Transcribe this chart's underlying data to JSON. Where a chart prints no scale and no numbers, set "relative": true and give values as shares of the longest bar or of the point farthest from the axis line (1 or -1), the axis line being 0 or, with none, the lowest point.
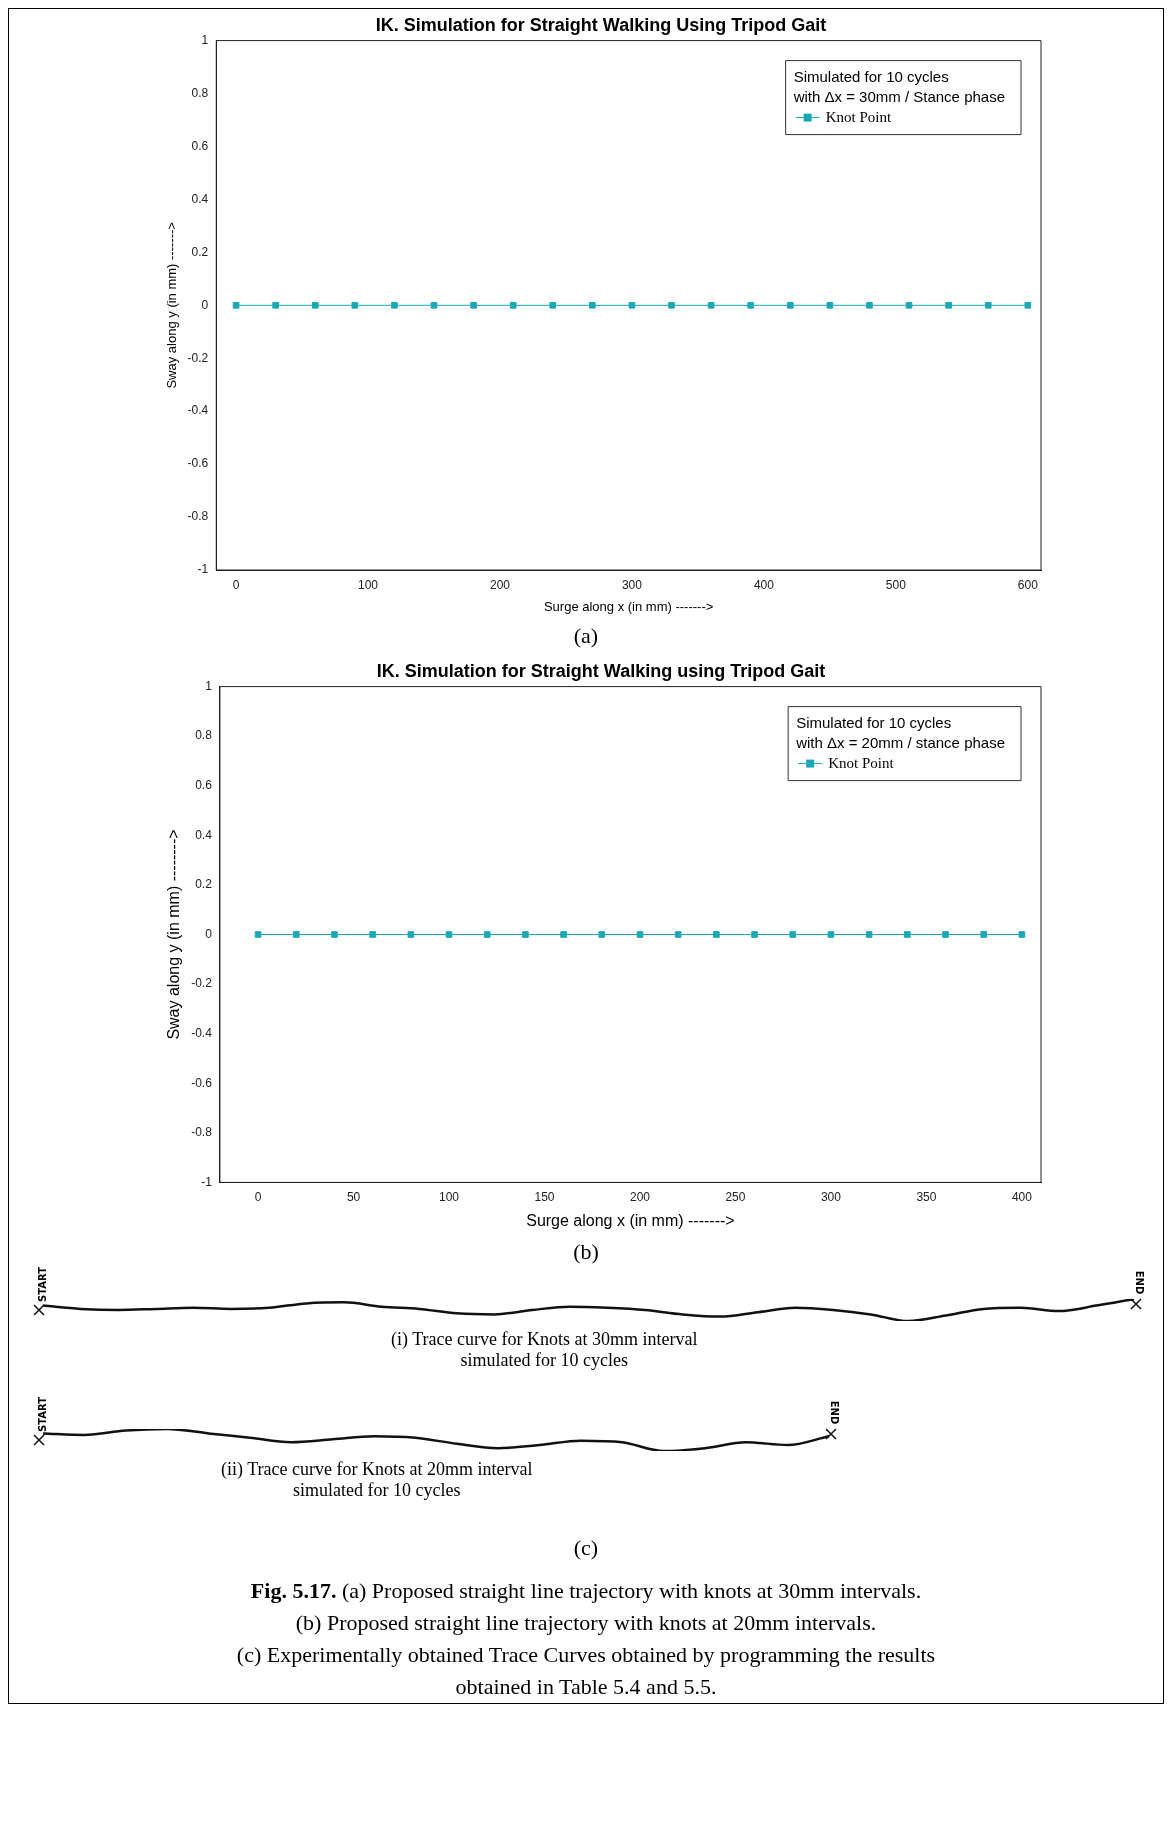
{
  "chart_data": [
    {
      "type": "line",
      "title": "IK. Simulation for Straight Walking Using Tripod Gait",
      "xlabel": "Surge along x (in mm) ------->",
      "ylabel": "Sway along y (in mm) ------->",
      "legend_title": "Simulated for 10 cycles\nwith Δx = 30mm / Stance phase",
      "legend": "top right",
      "marker": "square",
      "x": [
        0,
        30,
        60,
        90,
        120,
        150,
        180,
        210,
        240,
        270,
        300,
        330,
        360,
        390,
        420,
        450,
        480,
        510,
        540,
        570,
        600
      ],
      "series": [
        {
          "name": "Knot Point",
          "color": "#1ba8b4",
          "values": [
            0,
            0,
            0,
            0,
            0,
            0,
            0,
            0,
            0,
            0,
            0,
            0,
            0,
            0,
            0,
            0,
            0,
            0,
            0,
            0,
            0
          ]
        }
      ],
      "xlim": [
        -15,
        610
      ],
      "xticks": [
        0,
        100,
        200,
        300,
        400,
        500,
        600
      ],
      "ylim": [
        -1,
        1
      ],
      "yticks": [
        -1,
        -0.8,
        -0.6,
        -0.4,
        -0.2,
        0,
        0.2,
        0.4,
        0.6,
        0.8,
        1
      ],
      "annotations": [
        "(a)"
      ]
    },
    {
      "type": "line",
      "title": "IK. Simulation for Straight Walking using Tripod Gait",
      "xlabel": "Surge along x (in mm) ------->",
      "ylabel": "Sway along y (in mm) -------->",
      "legend_title": "Simulated for 10 cycles\nwith Δx = 20mm / stance phase",
      "legend": "top right",
      "marker": "square",
      "x": [
        0,
        20,
        40,
        60,
        80,
        100,
        120,
        140,
        160,
        180,
        200,
        220,
        240,
        260,
        280,
        300,
        320,
        340,
        360,
        380,
        400
      ],
      "series": [
        {
          "name": "Knot Point",
          "color": "#1ba8b4",
          "values": [
            0,
            0,
            0,
            0,
            0,
            0,
            0,
            0,
            0,
            0,
            0,
            0,
            0,
            0,
            0,
            0,
            0,
            0,
            0,
            0,
            0
          ]
        }
      ],
      "xlim": [
        -20,
        410
      ],
      "xticks": [
        0,
        50,
        100,
        150,
        200,
        250,
        300,
        350,
        400
      ],
      "ylim": [
        -1,
        1
      ],
      "yticks": [
        -1,
        -0.8,
        -0.6,
        -0.4,
        -0.2,
        0,
        0.2,
        0.4,
        0.6,
        0.8,
        1
      ],
      "annotations": [
        "(b)"
      ]
    },
    {
      "type": "line",
      "relative": true,
      "categories": [
        null,
        null,
        null,
        null,
        null,
        null,
        null,
        null,
        null,
        null,
        null,
        null,
        null,
        null,
        null,
        null,
        null,
        null,
        null,
        null,
        null,
        null,
        null,
        null,
        null,
        null,
        null,
        null,
        null,
        null
      ],
      "series": [
        {
          "color": "#111111",
          "values": [
            0.7,
            0.55,
            0.5,
            0.55,
            0.6,
            0.55,
            0.6,
            0.8,
            0.85,
            0.65,
            0.55,
            0.35,
            0.3,
            0.5,
            0.65,
            0.6,
            0.5,
            0.3,
            0.2,
            0.4,
            0.6,
            0.5,
            0.3,
            0,
            0.25,
            0.55,
            0.6,
            0.45,
            0.7,
            1
          ]
        }
      ],
      "annotations": [
        "START",
        "END",
        "(i) Trace curve for Knots at 30mm interval\nsimulated for 10 cycles"
      ]
    },
    {
      "type": "line",
      "relative": true,
      "categories": [
        null,
        null,
        null,
        null,
        null,
        null,
        null,
        null,
        null,
        null,
        null,
        null,
        null,
        null,
        null,
        null,
        null,
        null,
        null,
        null
      ],
      "series": [
        {
          "color": "#111111",
          "values": [
            0.8,
            0.73,
            0.93,
            1,
            0.8,
            0.6,
            0.4,
            0.53,
            0.67,
            0.6,
            0.33,
            0.13,
            0.27,
            0.47,
            0.4,
            0,
            0.13,
            0.4,
            0.27,
            0.67
          ]
        }
      ],
      "annotations": [
        "START",
        "END",
        "(ii) Trace curve for Knots at 20mm interval\nsimulated for 10 cycles",
        "(c)",
        "Fig. 5.17.",
        "(a) Proposed straight line trajectory with knots at 30mm intervals.",
        "(b) Proposed straight line trajectory with knots at 20mm intervals.",
        "(c) Experimentally obtained Trace Curves obtained by programming the results\nobtained in Table 5.4 and 5.5."
      ]
    }
  ]
}
